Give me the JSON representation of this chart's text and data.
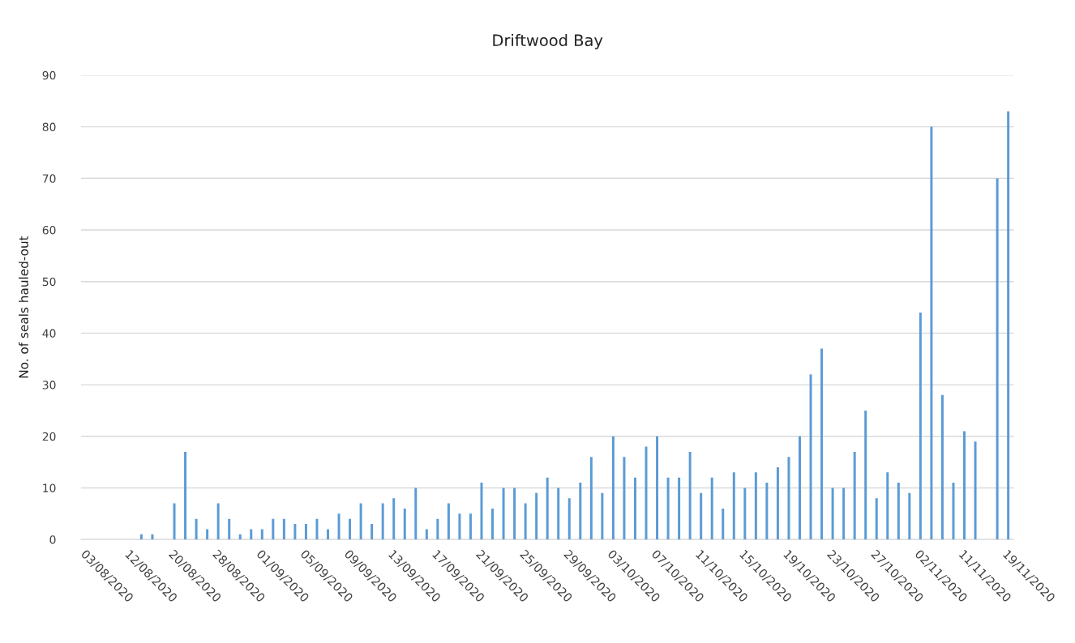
{
  "chart_data": {
    "type": "bar",
    "title": "Driftwood Bay",
    "ylabel": "No. of seals hauled-out",
    "categories": [
      "03/08/2020",
      null,
      null,
      null,
      "12/08/2020",
      null,
      null,
      null,
      "20/08/2020",
      null,
      null,
      null,
      "28/08/2020",
      null,
      null,
      null,
      "01/09/2020",
      null,
      null,
      null,
      "05/09/2020",
      null,
      null,
      null,
      "09/09/2020",
      null,
      null,
      null,
      "13/09/2020",
      null,
      null,
      null,
      "17/09/2020",
      null,
      null,
      null,
      "21/09/2020",
      null,
      null,
      null,
      "25/09/2020",
      null,
      null,
      null,
      "29/09/2020",
      null,
      null,
      null,
      "03/10/2020",
      null,
      null,
      null,
      "07/10/2020",
      null,
      null,
      null,
      "11/10/2020",
      null,
      null,
      null,
      "15/10/2020",
      null,
      null,
      null,
      "19/10/2020",
      null,
      null,
      null,
      "23/10/2020",
      null,
      null,
      null,
      "27/10/2020",
      null,
      null,
      null,
      "02/11/2020",
      null,
      null,
      null,
      "11/11/2020",
      null,
      null,
      null,
      "19/11/2020"
    ],
    "values": [
      null,
      null,
      null,
      null,
      null,
      1,
      1,
      null,
      7,
      17,
      4,
      2,
      7,
      4,
      1,
      2,
      2,
      4,
      4,
      3,
      3,
      4,
      2,
      5,
      4,
      7,
      3,
      7,
      8,
      6,
      10,
      2,
      4,
      7,
      5,
      5,
      11,
      6,
      10,
      10,
      7,
      9,
      12,
      10,
      8,
      11,
      16,
      9,
      20,
      16,
      12,
      18,
      20,
      12,
      12,
      17,
      9,
      12,
      6,
      13,
      10,
      13,
      11,
      14,
      16,
      20,
      32,
      37,
      10,
      10,
      17,
      25,
      8,
      13,
      11,
      9,
      44,
      80,
      28,
      11,
      21,
      19,
      null,
      70,
      83
    ],
    "color": "#5b9bd5",
    "ylim": [
      0,
      90
    ],
    "yticks": [
      0,
      10,
      20,
      30,
      40,
      50,
      60,
      70,
      80,
      90
    ],
    "grid": "y",
    "legend": false
  }
}
